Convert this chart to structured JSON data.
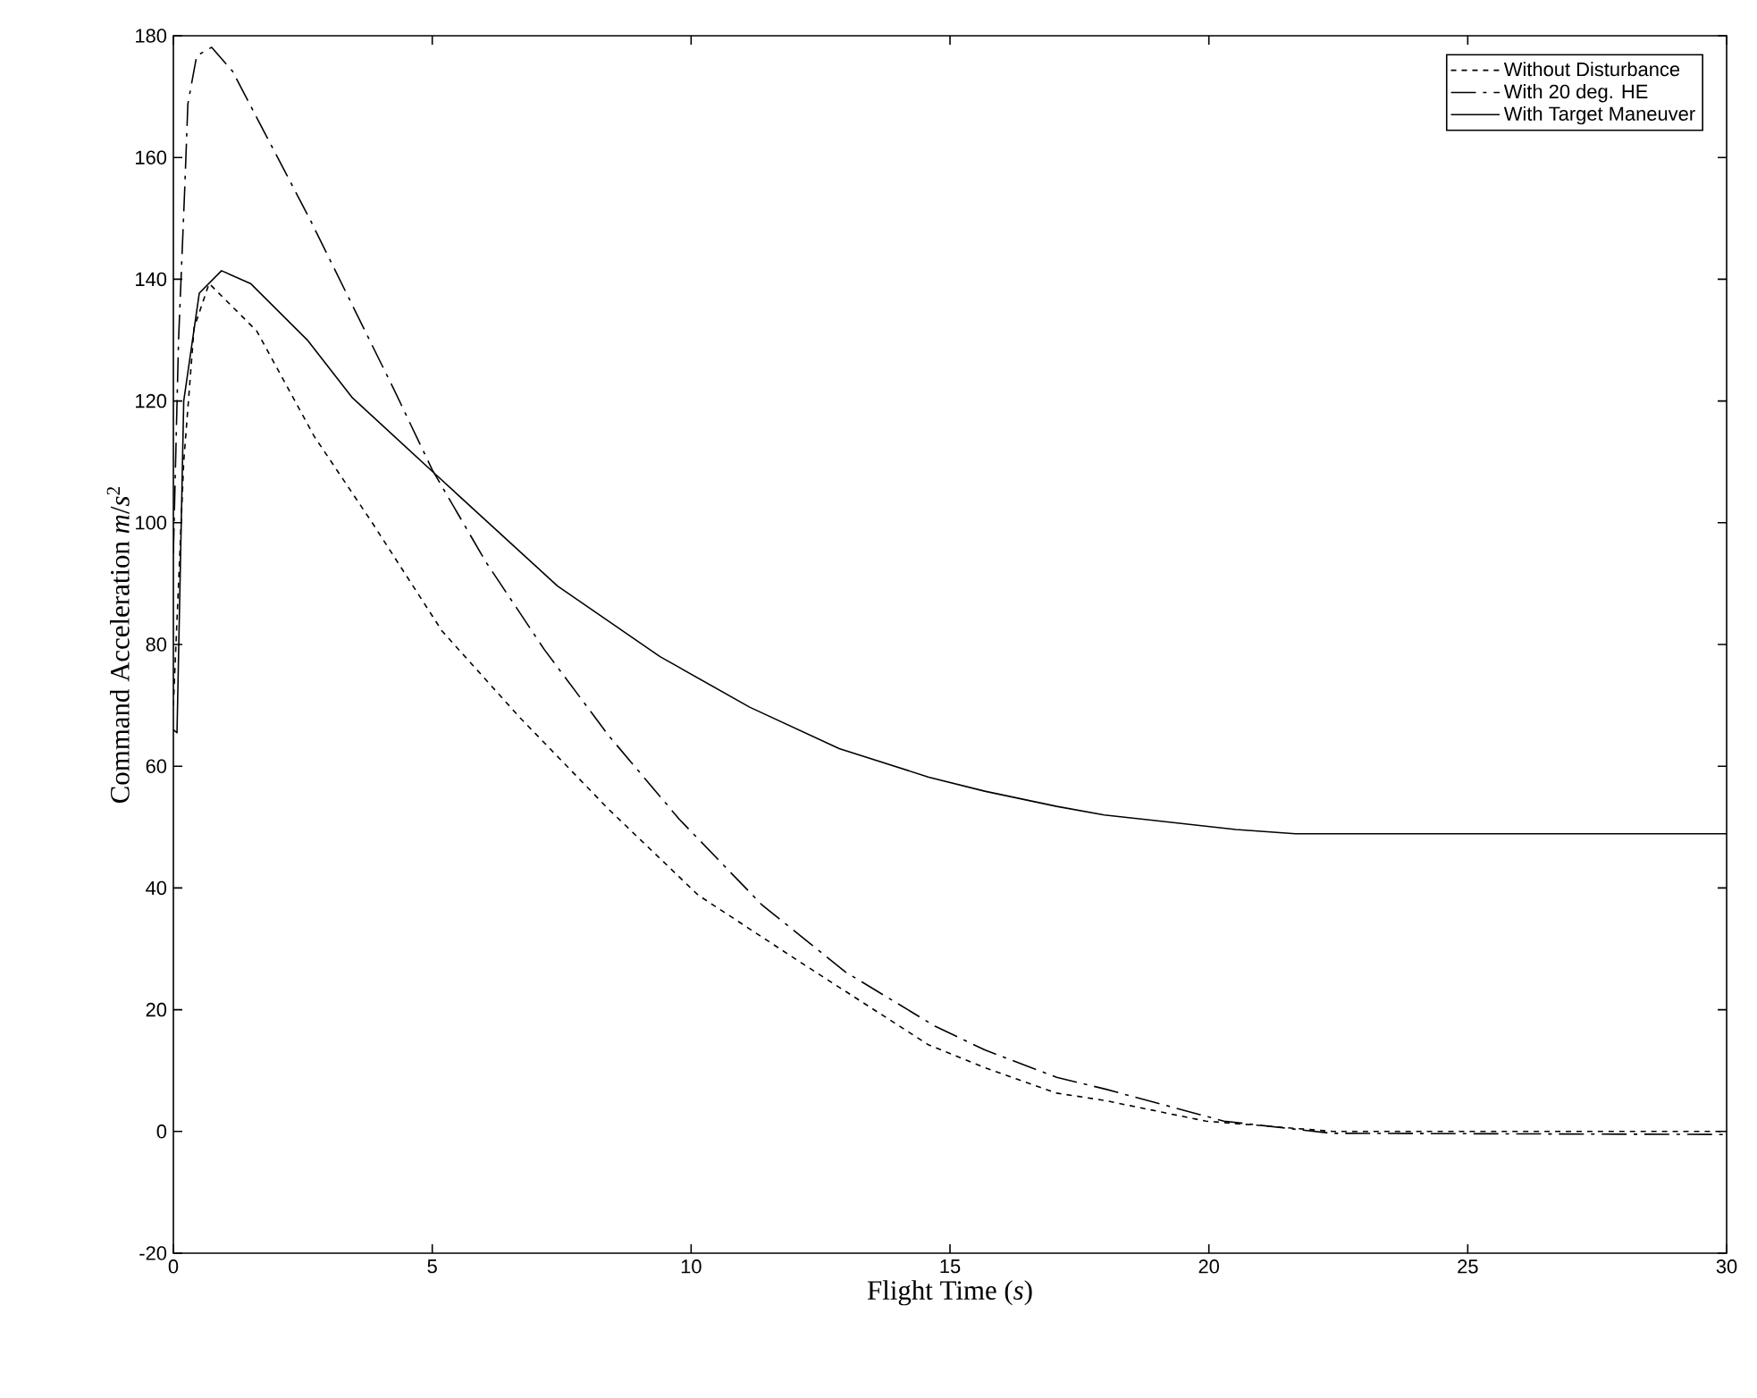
{
  "chart_data": {
    "type": "line",
    "xlabel": "Flight Time (*s*)",
    "ylabel": "Command Acceleration *m*/*s*$^{2}$",
    "xlim": [
      0,
      30
    ],
    "ylim": [
      -20,
      180
    ],
    "xticks": [
      0,
      5,
      10,
      15,
      20,
      25,
      30
    ],
    "yticks": [
      -20,
      0,
      20,
      40,
      60,
      80,
      100,
      120,
      140,
      160,
      180
    ],
    "grid": false,
    "legend": "top right",
    "marker": "none",
    "series": [
      {
        "name": "Without Disturbance",
        "color": "#000000",
        "line_style": "dotted",
        "x": [
          0,
          0.2,
          0.4,
          0.69,
          1.61,
          2.72,
          3.84,
          5.19,
          6.68,
          8.41,
          10.14,
          12.11,
          14.59,
          15.67,
          17.06,
          17.98,
          19.94,
          22.4,
          30
        ],
        "values": [
          70,
          110,
          132,
          139.3,
          131.5,
          114.2,
          100,
          82.2,
          68.1,
          52.9,
          38.8,
          27.8,
          14.2,
          10.5,
          6.3,
          5.1,
          1.7,
          0,
          0
        ]
      },
      {
        "name": "With 20 deg. HE",
        "color": "#000000",
        "line_style": "dashdot",
        "x": [
          0,
          0.1,
          0.22,
          0.28,
          0.45,
          0.74,
          1.14,
          2.64,
          4.26,
          5.0,
          6.04,
          7.17,
          8.41,
          9.77,
          11.37,
          12.98,
          14.71,
          15.67,
          17.06,
          17.98,
          20.29,
          22.36,
          30
        ],
        "values": [
          95,
          130,
          155,
          168.8,
          176.7,
          178.1,
          174.2,
          149.8,
          121.9,
          108.7,
          93.5,
          79.1,
          65,
          51.3,
          37.2,
          26.2,
          17.3,
          13.4,
          8.9,
          7.0,
          1.7,
          -0.3,
          -0.5
        ]
      },
      {
        "name": "With Target Maneuver",
        "color": "#000000",
        "line_style": "solid",
        "x": [
          0,
          0.07,
          0.2,
          0.5,
          0.93,
          1.49,
          2.6,
          3.46,
          5.07,
          7.42,
          9.4,
          11.13,
          12.86,
          14.59,
          15.67,
          17.06,
          17.98,
          20.52,
          21.67,
          30
        ],
        "values": [
          66,
          65.5,
          120,
          137.7,
          141.4,
          139.3,
          129.9,
          120.5,
          107.9,
          89.6,
          78.0,
          69.7,
          62.9,
          58.2,
          55.9,
          53.4,
          52.0,
          49.6,
          48.9,
          48.9
        ]
      }
    ]
  }
}
